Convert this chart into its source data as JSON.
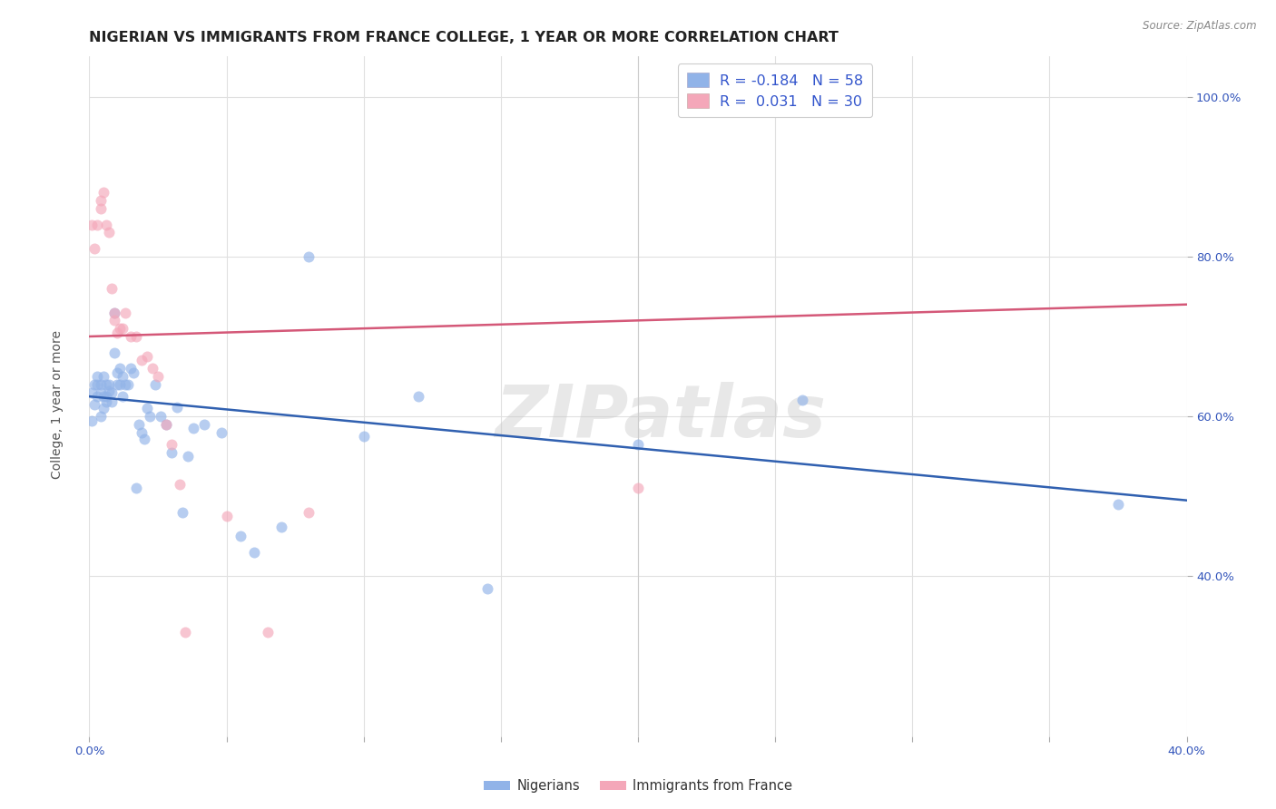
{
  "title": "NIGERIAN VS IMMIGRANTS FROM FRANCE COLLEGE, 1 YEAR OR MORE CORRELATION CHART",
  "source": "Source: ZipAtlas.com",
  "ylabel": "College, 1 year or more",
  "watermark": "ZIPatlas",
  "xlim": [
    0.0,
    0.4
  ],
  "ylim": [
    0.2,
    1.05
  ],
  "yticks": [
    0.4,
    0.6,
    0.8,
    1.0
  ],
  "ytick_labels": [
    "40.0%",
    "60.0%",
    "80.0%",
    "100.0%"
  ],
  "xtick_labels": [
    "0.0%",
    "",
    "",
    "",
    "",
    "",
    "",
    "",
    "40.0%"
  ],
  "blue_color": "#91b3e8",
  "pink_color": "#f4a7b9",
  "blue_line_color": "#3060b0",
  "pink_line_color": "#d45878",
  "legend_blue_label": "R = -0.184   N = 58",
  "legend_pink_label": "R =  0.031   N = 30",
  "nigerians_label": "Nigerians",
  "france_label": "Immigrants from France",
  "blue_line_x0": 0.0,
  "blue_line_y0": 0.625,
  "blue_line_x1": 0.4,
  "blue_line_y1": 0.495,
  "pink_line_x0": 0.0,
  "pink_line_y0": 0.7,
  "pink_line_x1": 0.4,
  "pink_line_y1": 0.74,
  "blue_x": [
    0.001,
    0.001,
    0.002,
    0.002,
    0.003,
    0.003,
    0.003,
    0.004,
    0.004,
    0.004,
    0.005,
    0.005,
    0.005,
    0.006,
    0.006,
    0.006,
    0.007,
    0.007,
    0.008,
    0.008,
    0.009,
    0.009,
    0.01,
    0.01,
    0.011,
    0.011,
    0.012,
    0.012,
    0.013,
    0.014,
    0.015,
    0.016,
    0.017,
    0.018,
    0.019,
    0.02,
    0.021,
    0.022,
    0.024,
    0.026,
    0.028,
    0.03,
    0.032,
    0.034,
    0.036,
    0.038,
    0.042,
    0.048,
    0.055,
    0.06,
    0.07,
    0.08,
    0.1,
    0.12,
    0.145,
    0.2,
    0.26,
    0.375
  ],
  "blue_y": [
    0.63,
    0.595,
    0.64,
    0.615,
    0.65,
    0.625,
    0.64,
    0.64,
    0.6,
    0.63,
    0.61,
    0.625,
    0.65,
    0.64,
    0.618,
    0.625,
    0.64,
    0.632,
    0.63,
    0.618,
    0.68,
    0.73,
    0.655,
    0.64,
    0.66,
    0.64,
    0.625,
    0.65,
    0.64,
    0.64,
    0.66,
    0.655,
    0.51,
    0.59,
    0.58,
    0.572,
    0.61,
    0.6,
    0.64,
    0.6,
    0.59,
    0.555,
    0.612,
    0.48,
    0.55,
    0.585,
    0.59,
    0.58,
    0.45,
    0.43,
    0.462,
    0.8,
    0.575,
    0.625,
    0.385,
    0.565,
    0.62,
    0.49
  ],
  "pink_x": [
    0.001,
    0.002,
    0.003,
    0.004,
    0.004,
    0.005,
    0.006,
    0.007,
    0.008,
    0.009,
    0.009,
    0.01,
    0.011,
    0.012,
    0.013,
    0.015,
    0.017,
    0.019,
    0.021,
    0.023,
    0.025,
    0.028,
    0.03,
    0.033,
    0.035,
    0.05,
    0.065,
    0.08,
    0.2,
    0.28
  ],
  "pink_y": [
    0.84,
    0.81,
    0.84,
    0.87,
    0.86,
    0.88,
    0.84,
    0.83,
    0.76,
    0.73,
    0.72,
    0.705,
    0.71,
    0.71,
    0.73,
    0.7,
    0.7,
    0.67,
    0.675,
    0.66,
    0.65,
    0.59,
    0.565,
    0.515,
    0.33,
    0.475,
    0.33,
    0.48,
    0.51,
    1.01
  ],
  "background_color": "#ffffff",
  "grid_color": "#e0e0e0",
  "title_fontsize": 11.5,
  "label_fontsize": 10,
  "tick_fontsize": 9.5,
  "marker_size": 75,
  "marker_alpha": 0.65,
  "line_width": 1.8
}
